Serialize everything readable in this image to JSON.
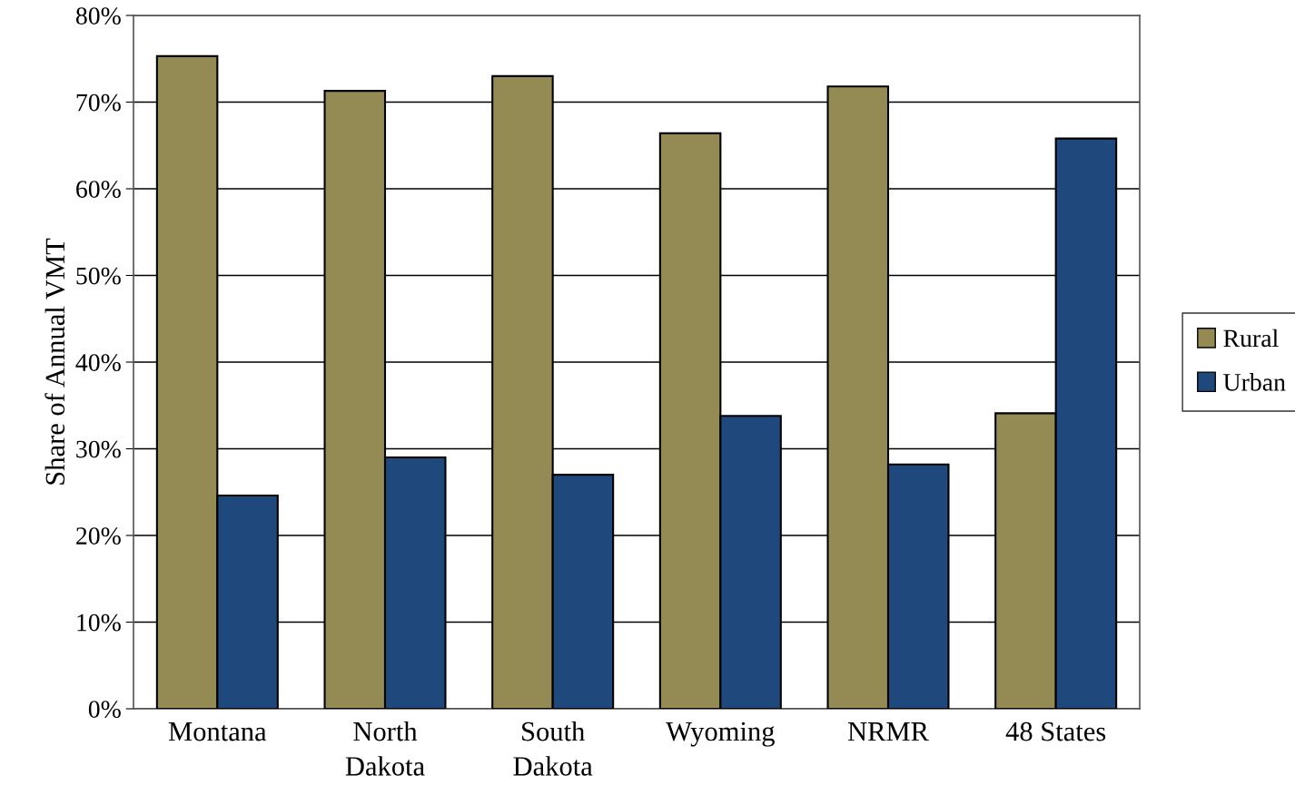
{
  "chart_data": {
    "type": "bar",
    "ylabel": "Share of Annual VMT",
    "categories": [
      "Montana",
      "North\nDakota",
      "South\nDakota",
      "Wyoming",
      "NRMR",
      "48 States"
    ],
    "series": [
      {
        "name": "Rural",
        "color": "#948a54",
        "values": [
          75.3,
          71.3,
          73.0,
          66.4,
          71.8,
          34.1
        ]
      },
      {
        "name": "Urban",
        "color": "#1f497d",
        "values": [
          24.6,
          29.0,
          27.0,
          33.8,
          28.2,
          65.8
        ]
      }
    ],
    "ylim": [
      0,
      80
    ],
    "yticks": [
      {
        "value": 0,
        "label": "0%"
      },
      {
        "value": 10,
        "label": "10%"
      },
      {
        "value": 20,
        "label": "20%"
      },
      {
        "value": 30,
        "label": "30%"
      },
      {
        "value": 40,
        "label": "40%"
      },
      {
        "value": 50,
        "label": "50%"
      },
      {
        "value": 60,
        "label": "60%"
      },
      {
        "value": 70,
        "label": "70%"
      },
      {
        "value": 80,
        "label": "80%"
      }
    ],
    "grid": "y",
    "legend": "right"
  }
}
